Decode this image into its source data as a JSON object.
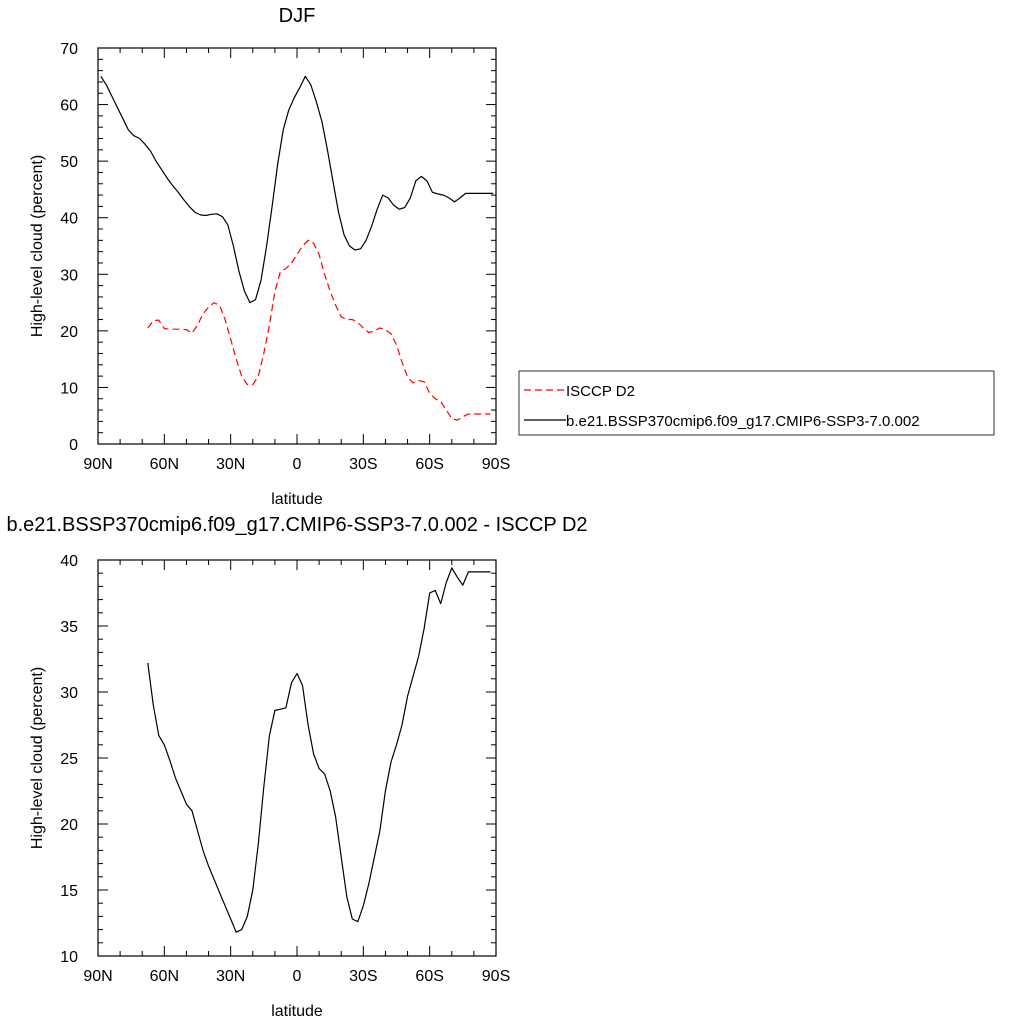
{
  "chart_data": [
    {
      "type": "line",
      "title": "DJF",
      "xlabel": "latitude",
      "ylabel": "High-level cloud (percent)",
      "xlim": [
        90,
        -90
      ],
      "ylim": [
        0,
        70
      ],
      "xticks": [
        {
          "value": 90,
          "label": "90N"
        },
        {
          "value": 60,
          "label": "60N"
        },
        {
          "value": 30,
          "label": "30N"
        },
        {
          "value": 0,
          "label": "0"
        },
        {
          "value": -30,
          "label": "30S"
        },
        {
          "value": -60,
          "label": "60S"
        },
        {
          "value": -90,
          "label": "90S"
        }
      ],
      "yticks": [
        0,
        10,
        20,
        30,
        40,
        50,
        60,
        70
      ],
      "grid": false,
      "legend_position": "right",
      "series": [
        {
          "name": "ISCCP D2",
          "color": "#ff0000",
          "dash": "dashed",
          "x": [
            67.5,
            65,
            62.5,
            60,
            57.5,
            55,
            52.5,
            50,
            47.5,
            45,
            42.5,
            40,
            37.5,
            35,
            32.5,
            30,
            27.5,
            25,
            22.5,
            20,
            17.5,
            15,
            12.5,
            10,
            7.5,
            5,
            2.5,
            0,
            -2.5,
            -5,
            -7.5,
            -10,
            -12.5,
            -15,
            -17.5,
            -20,
            -22.5,
            -25,
            -27.5,
            -30,
            -32.5,
            -35,
            -37.5,
            -40,
            -42.5,
            -45,
            -47.5,
            -50,
            -52.5,
            -55,
            -57.5,
            -60,
            -62.5,
            -65,
            -67.5,
            -70,
            -72.5,
            -75,
            -77.5,
            -80,
            -82.5,
            -85,
            -87.5
          ],
          "values": [
            20.5,
            21.8,
            21.9,
            20.4,
            20.3,
            20.3,
            20.3,
            20.2,
            19.6,
            21.0,
            23.0,
            24.2,
            25.0,
            24.5,
            22.0,
            18.5,
            15.0,
            12.0,
            10.5,
            10.5,
            12.0,
            16.0,
            21.0,
            27.0,
            30.5,
            31.0,
            32.0,
            33.5,
            35.0,
            36.0,
            35.5,
            33.5,
            30.0,
            27.0,
            24.5,
            22.5,
            22.0,
            22.0,
            21.5,
            20.5,
            19.7,
            20.0,
            20.5,
            20.2,
            19.5,
            17.5,
            14.5,
            11.8,
            10.8,
            11.2,
            11.0,
            9.0,
            8.0,
            7.5,
            6.0,
            4.5,
            4.2,
            4.8,
            5.3,
            5.3,
            5.3,
            5.3,
            5.3
          ]
        },
        {
          "name": "b.e21.BSSP370cmip6.f09_g17.CMIP6-SSP3-7.0.002",
          "color": "#000000",
          "dash": "solid",
          "x": [
            88.75,
            86.25,
            83.75,
            81.25,
            78.75,
            76.25,
            73.75,
            71.25,
            68.75,
            66.25,
            63.75,
            61.25,
            58.75,
            56.25,
            53.75,
            51.25,
            48.75,
            46.25,
            43.75,
            41.25,
            38.75,
            36.25,
            33.75,
            31.25,
            28.75,
            26.25,
            23.75,
            21.25,
            18.75,
            16.25,
            13.75,
            11.25,
            8.75,
            6.25,
            3.75,
            1.25,
            -1.25,
            -3.75,
            -6.25,
            -8.75,
            -11.25,
            -13.75,
            -16.25,
            -18.75,
            -21.25,
            -23.75,
            -26.25,
            -28.75,
            -31.25,
            -33.75,
            -36.25,
            -38.75,
            -41.25,
            -43.75,
            -46.25,
            -48.75,
            -51.25,
            -53.75,
            -56.25,
            -58.75,
            -61.25,
            -63.75,
            -66.25,
            -68.75,
            -71.25,
            -73.75,
            -76.25,
            -78.75,
            -81.25,
            -83.75,
            -86.25,
            -88.75
          ],
          "values": [
            65.0,
            63.5,
            61.5,
            59.5,
            57.5,
            55.5,
            54.5,
            54.0,
            53.0,
            51.8,
            50.0,
            48.5,
            47.0,
            45.7,
            44.5,
            43.2,
            42.0,
            41.0,
            40.5,
            40.4,
            40.6,
            40.7,
            40.2,
            38.7,
            35.0,
            30.5,
            27.0,
            25.0,
            25.5,
            29.0,
            35.0,
            42.0,
            49.5,
            55.5,
            59.0,
            61.2,
            63.0,
            65.0,
            63.5,
            60.5,
            57.0,
            52.0,
            46.5,
            41.0,
            37.0,
            35.0,
            34.3,
            34.5,
            36.0,
            38.5,
            41.5,
            44.0,
            43.5,
            42.2,
            41.5,
            41.8,
            43.5,
            46.5,
            47.3,
            46.5,
            44.5,
            44.2,
            44.0,
            43.5,
            42.8,
            43.5,
            44.3,
            44.3,
            44.3,
            44.3,
            44.3,
            44.3
          ]
        }
      ]
    },
    {
      "type": "line",
      "title": "b.e21.BSSP370cmip6.f09_g17.CMIP6-SSP3-7.0.002 - ISCCP D2",
      "xlabel": "latitude",
      "ylabel": "High-level cloud (percent)",
      "xlim": [
        90,
        -90
      ],
      "ylim": [
        10,
        40
      ],
      "xticks": [
        {
          "value": 90,
          "label": "90N"
        },
        {
          "value": 60,
          "label": "60N"
        },
        {
          "value": 30,
          "label": "30N"
        },
        {
          "value": 0,
          "label": "0"
        },
        {
          "value": -30,
          "label": "30S"
        },
        {
          "value": -60,
          "label": "60S"
        },
        {
          "value": -90,
          "label": "90S"
        }
      ],
      "yticks": [
        10,
        15,
        20,
        25,
        30,
        35,
        40
      ],
      "grid": false,
      "series": [
        {
          "color": "#000000",
          "dash": "solid",
          "x": [
            67.5,
            65,
            62.5,
            60,
            57.5,
            55,
            52.5,
            50,
            47.5,
            45,
            42.5,
            40,
            37.5,
            35,
            32.5,
            30,
            27.5,
            25,
            22.5,
            20,
            17.5,
            15,
            12.5,
            10,
            7.5,
            5,
            2.5,
            0,
            -2.5,
            -5,
            -7.5,
            -10,
            -12.5,
            -15,
            -17.5,
            -20,
            -22.5,
            -25,
            -27.5,
            -30,
            -32.5,
            -35,
            -37.5,
            -40,
            -42.5,
            -45,
            -47.5,
            -50,
            -52.5,
            -55,
            -57.5,
            -60,
            -62.5,
            -65,
            -67.5,
            -70,
            -72.5,
            -75,
            -77.5,
            -80,
            -82.5,
            -85,
            -87.5
          ],
          "values": [
            32.2,
            29.0,
            26.7,
            26.0,
            24.8,
            23.5,
            22.5,
            21.5,
            21.0,
            19.5,
            18.0,
            16.8,
            15.8,
            14.8,
            13.8,
            12.8,
            11.8,
            12.0,
            13.0,
            15.0,
            18.5,
            22.8,
            26.7,
            28.6,
            28.7,
            28.8,
            30.7,
            31.4,
            30.5,
            27.5,
            25.3,
            24.2,
            23.8,
            22.5,
            20.5,
            17.5,
            14.5,
            12.8,
            12.6,
            13.8,
            15.5,
            17.5,
            19.5,
            22.5,
            24.7,
            26.0,
            27.5,
            29.7,
            31.2,
            32.7,
            34.8,
            37.5,
            37.7,
            36.7,
            38.3,
            39.4,
            38.7,
            38.1,
            39.1,
            39.1,
            39.1,
            39.1,
            39.1
          ]
        }
      ]
    }
  ]
}
